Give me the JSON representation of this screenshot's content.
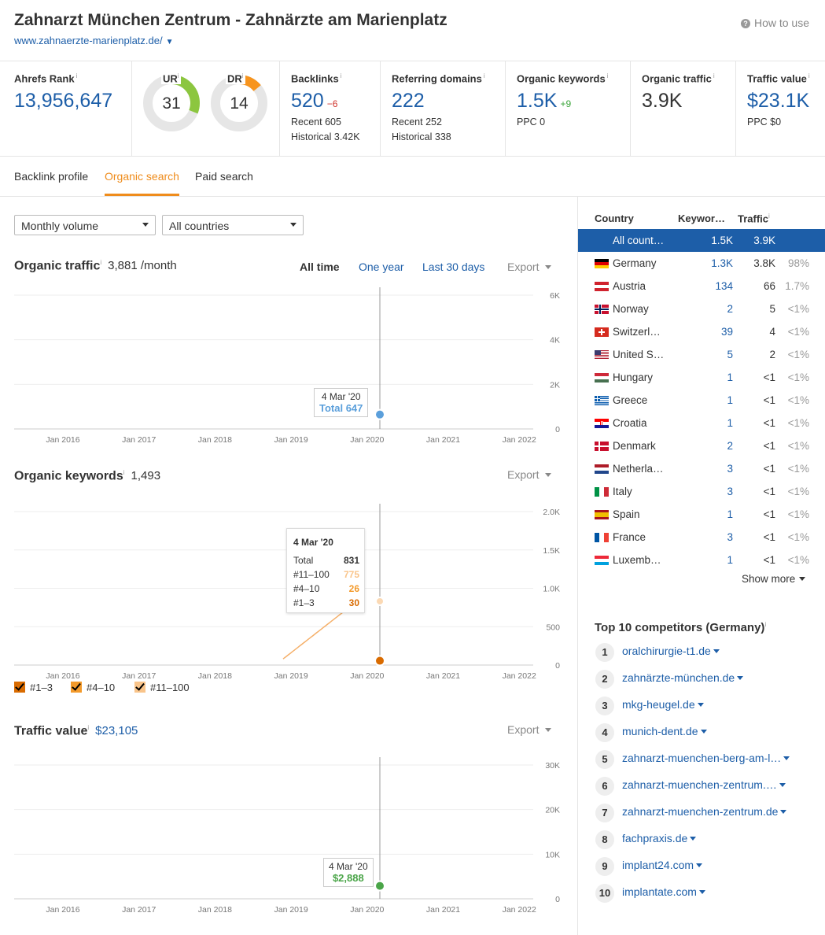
{
  "header": {
    "title": "Zahnarzt München Zentrum - Zahnärzte am Marienplatz",
    "url": "www.zahnaerzte-marienplatz.de/",
    "how_to_use": "How to use"
  },
  "metrics": {
    "ahrefs_rank": {
      "label": "Ahrefs Rank",
      "value": "13,956,647"
    },
    "ur": {
      "label": "UR",
      "value": "31",
      "fraction": 0.31
    },
    "dr": {
      "label": "DR",
      "value": "14",
      "fraction": 0.14
    },
    "backlinks": {
      "label": "Backlinks",
      "value": "520",
      "delta": "−6",
      "recent": "Recent 605",
      "historical": "Historical 3.42K"
    },
    "referring_domains": {
      "label": "Referring domains",
      "value": "222",
      "recent": "Recent 252",
      "historical": "Historical 338"
    },
    "organic_keywords": {
      "label": "Organic keywords",
      "value": "1.5K",
      "delta": "+9",
      "ppc": "PPC 0"
    },
    "organic_traffic": {
      "label": "Organic traffic",
      "value": "3.9K"
    },
    "traffic_value": {
      "label": "Traffic value",
      "value": "$23.1K",
      "ppc": "PPC $0"
    }
  },
  "tabs": [
    "Backlink profile",
    "Organic search",
    "Paid search"
  ],
  "filters": {
    "volume": "Monthly volume",
    "country": "All countries"
  },
  "time_ranges": [
    "All time",
    "One year",
    "Last 30 days"
  ],
  "export_label": "Export",
  "x_ticks": [
    "Jan 2016",
    "Jan 2017",
    "Jan 2018",
    "Jan 2019",
    "Jan 2020",
    "Jan 2021",
    "Jan 2022"
  ],
  "organic_traffic": {
    "title": "Organic traffic",
    "value": "3,881 /month",
    "y_ticks": [
      "6K",
      "4K",
      "2K",
      "0"
    ],
    "tooltip_date": "4 Mar '20",
    "tooltip_value": "Total 647",
    "color": "#5b9fdb"
  },
  "organic_keywords": {
    "title": "Organic keywords",
    "value": "1,493",
    "y_ticks": [
      "2.0K",
      "1.5K",
      "1.0K",
      "500",
      "0"
    ],
    "tooltip": {
      "date": "4 Mar '20",
      "rows": [
        {
          "label": "Total",
          "value": "831"
        },
        {
          "label": "#11–100",
          "value": "775"
        },
        {
          "label": "#4–10",
          "value": "26"
        },
        {
          "label": "#1–3",
          "value": "30"
        }
      ]
    },
    "legend": [
      "#1–3",
      "#4–10",
      "#11–100"
    ],
    "colors": {
      "top3": "#d96b00",
      "top10": "#f39a2b",
      "rest": "#f9c48a"
    }
  },
  "traffic_value": {
    "title": "Traffic value",
    "value": "$23,105",
    "y_ticks": [
      "30K",
      "20K",
      "10K",
      "0"
    ],
    "tooltip_date": "4 Mar '20",
    "tooltip_value": "$2,888",
    "color": "#4aa548"
  },
  "countries": {
    "headers": {
      "country": "Country",
      "keywords": "Keywor…",
      "traffic": "Traffic"
    },
    "rows": [
      {
        "flag": "none",
        "name": "All count…",
        "kw": "1.5K",
        "traffic": "3.9K",
        "pct": ""
      },
      {
        "flag": "de",
        "name": "Germany",
        "kw": "1.3K",
        "traffic": "3.8K",
        "pct": "98%"
      },
      {
        "flag": "at",
        "name": "Austria",
        "kw": "134",
        "traffic": "66",
        "pct": "1.7%"
      },
      {
        "flag": "no",
        "name": "Norway",
        "kw": "2",
        "traffic": "5",
        "pct": "<1%"
      },
      {
        "flag": "ch",
        "name": "Switzerl…",
        "kw": "39",
        "traffic": "4",
        "pct": "<1%"
      },
      {
        "flag": "us",
        "name": "United S…",
        "kw": "5",
        "traffic": "2",
        "pct": "<1%"
      },
      {
        "flag": "hu",
        "name": "Hungary",
        "kw": "1",
        "traffic": "<1",
        "pct": "<1%"
      },
      {
        "flag": "gr",
        "name": "Greece",
        "kw": "1",
        "traffic": "<1",
        "pct": "<1%"
      },
      {
        "flag": "hr",
        "name": "Croatia",
        "kw": "1",
        "traffic": "<1",
        "pct": "<1%"
      },
      {
        "flag": "dk",
        "name": "Denmark",
        "kw": "2",
        "traffic": "<1",
        "pct": "<1%"
      },
      {
        "flag": "nl",
        "name": "Netherla…",
        "kw": "3",
        "traffic": "<1",
        "pct": "<1%"
      },
      {
        "flag": "it",
        "name": "Italy",
        "kw": "3",
        "traffic": "<1",
        "pct": "<1%"
      },
      {
        "flag": "es",
        "name": "Spain",
        "kw": "1",
        "traffic": "<1",
        "pct": "<1%"
      },
      {
        "flag": "fr",
        "name": "France",
        "kw": "3",
        "traffic": "<1",
        "pct": "<1%"
      },
      {
        "flag": "lu",
        "name": "Luxemb…",
        "kw": "1",
        "traffic": "<1",
        "pct": "<1%"
      }
    ],
    "show_more": "Show more"
  },
  "competitors": {
    "title": "Top 10 competitors (Germany)",
    "items": [
      "oralchirurgie-t1.de",
      "zahnärzte-münchen.de",
      "mkg-heugel.de",
      "munich-dent.de",
      "zahnarzt-muenchen-berg-am-l…",
      "zahnarzt-muenchen-zentrum.…",
      "zahnarzt-muenchen-zentrum.de",
      "fachpraxis.de",
      "implant24.com",
      "implantate.com"
    ]
  }
}
